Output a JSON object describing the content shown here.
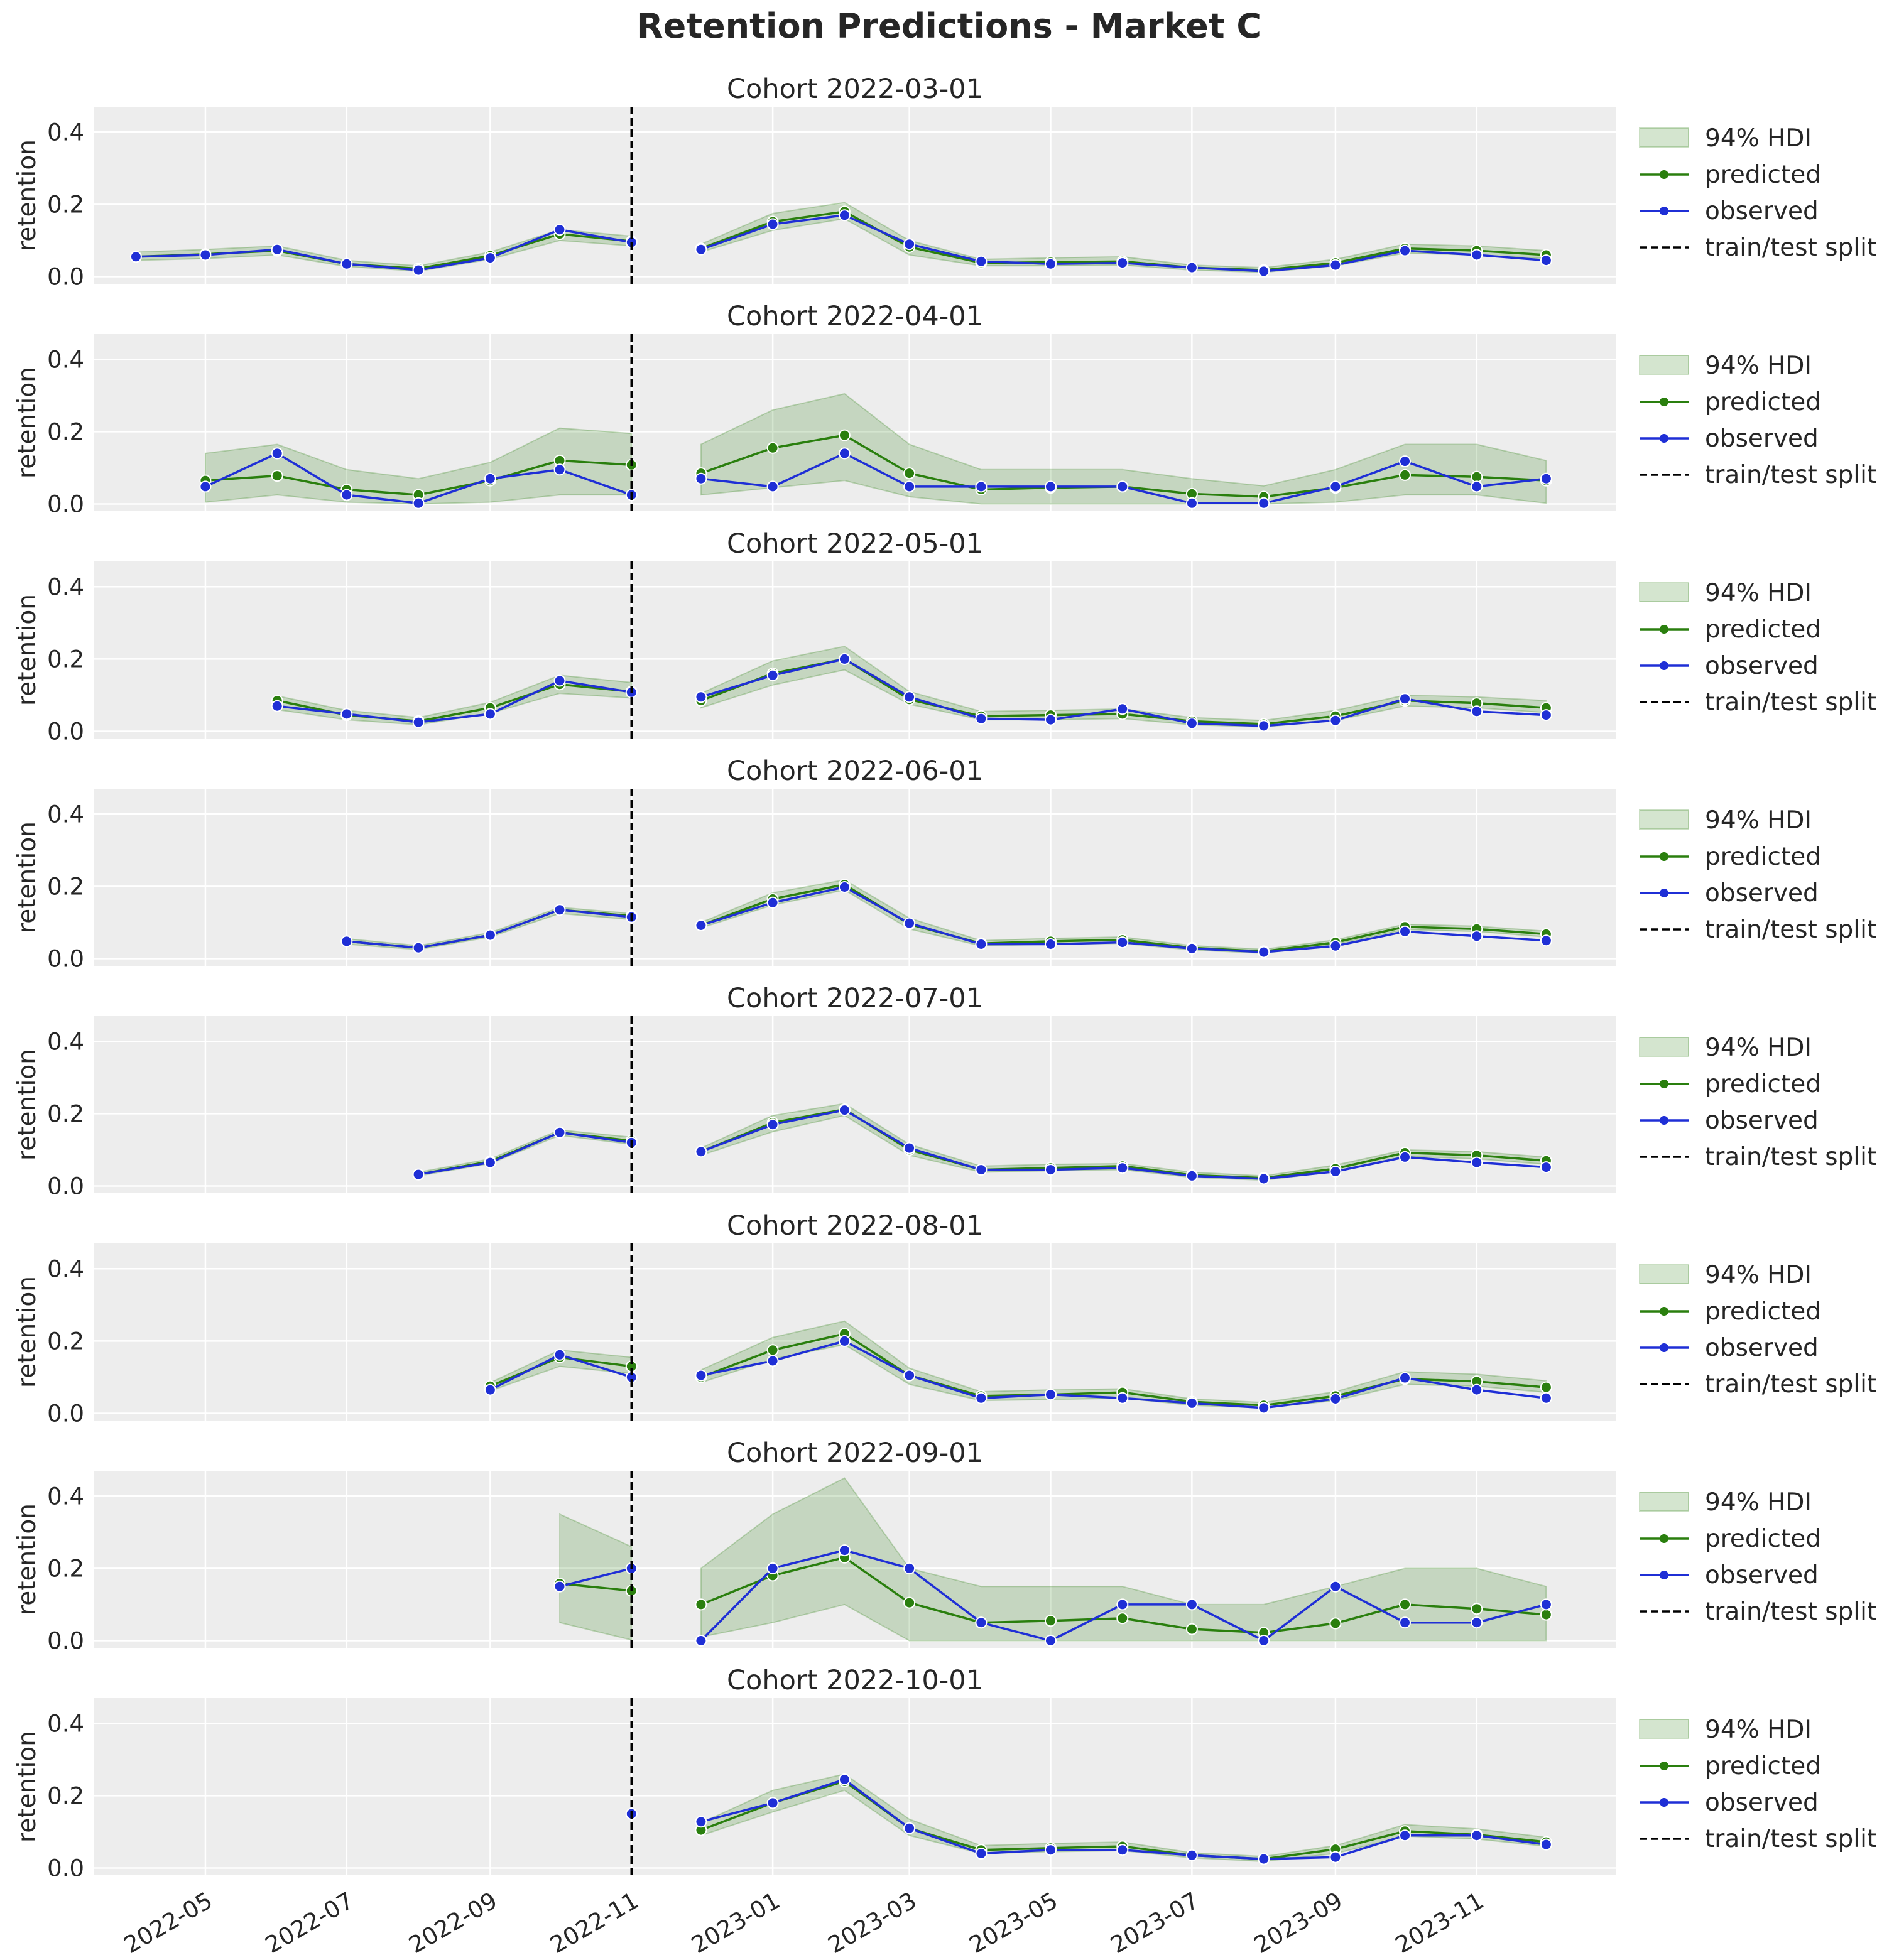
{
  "figure": {
    "title": "Retention Predictions - Market C"
  },
  "chart_data": {
    "type": "line",
    "ylabel": "retention",
    "ylim": [
      -0.02,
      0.47
    ],
    "xlim": [
      "2022-03-14",
      "2023-12-31"
    ],
    "yticks": [
      "0.0",
      "0.2",
      "0.4"
    ],
    "xticks": [
      "2022-05",
      "2022-07",
      "2022-09",
      "2022-11",
      "2023-01",
      "2023-03",
      "2023-05",
      "2023-07",
      "2023-09",
      "2023-11"
    ],
    "xtick_dates": [
      "2022-05-01",
      "2022-07-01",
      "2022-09-01",
      "2022-11-01",
      "2023-01-01",
      "2023-03-01",
      "2023-05-01",
      "2023-07-01",
      "2023-09-01",
      "2023-11-01"
    ],
    "grid": true,
    "legend_position": "outside-right",
    "legend": [
      "94% HDI",
      "predicted",
      "observed",
      "train/test split"
    ],
    "split_date": "2022-11-01",
    "colors": {
      "predicted": "#2a7f0e",
      "observed": "#1f2fd6",
      "hdi_fill": "#2a7f0e",
      "split": "#000000",
      "axes_bg": "#ededed"
    },
    "dates": [
      "2022-04-01",
      "2022-05-01",
      "2022-06-01",
      "2022-07-01",
      "2022-08-01",
      "2022-09-01",
      "2022-10-01",
      "2022-11-01",
      "2022-12-01",
      "2023-01-01",
      "2023-02-01",
      "2023-03-01",
      "2023-04-01",
      "2023-05-01",
      "2023-06-01",
      "2023-07-01",
      "2023-08-01",
      "2023-09-01",
      "2023-10-01",
      "2023-11-01",
      "2023-12-01"
    ],
    "panels": [
      {
        "title": "Cohort 2022-03-01",
        "predicted": [
          0.055,
          0.062,
          0.072,
          0.035,
          0.022,
          0.058,
          0.118,
          0.098,
          0.078,
          0.152,
          0.18,
          0.082,
          0.038,
          0.04,
          0.042,
          0.025,
          0.018,
          0.038,
          0.078,
          0.072,
          0.06
        ],
        "observed": [
          0.055,
          0.06,
          0.075,
          0.035,
          0.018,
          0.052,
          0.13,
          0.095,
          0.075,
          0.145,
          0.17,
          0.09,
          0.042,
          0.035,
          0.038,
          0.025,
          0.015,
          0.032,
          0.072,
          0.06,
          0.045
        ],
        "hdi_low": [
          0.045,
          0.05,
          0.06,
          0.028,
          0.015,
          0.048,
          0.1,
          0.085,
          0.068,
          0.128,
          0.16,
          0.06,
          0.03,
          0.03,
          0.032,
          0.018,
          0.012,
          0.03,
          0.065,
          0.06,
          0.05
        ],
        "hdi_high": [
          0.068,
          0.075,
          0.085,
          0.045,
          0.03,
          0.068,
          0.13,
          0.112,
          0.09,
          0.175,
          0.205,
          0.1,
          0.048,
          0.052,
          0.055,
          0.032,
          0.025,
          0.048,
          0.09,
          0.085,
          0.072
        ]
      },
      {
        "title": "Cohort 2022-04-01",
        "predicted": [
          null,
          0.065,
          0.078,
          0.04,
          0.025,
          0.065,
          0.12,
          0.108,
          0.085,
          0.155,
          0.19,
          0.085,
          0.04,
          0.045,
          0.048,
          0.028,
          0.02,
          0.045,
          0.08,
          0.075,
          0.065
        ],
        "observed": [
          null,
          0.048,
          0.14,
          0.025,
          0.002,
          0.07,
          0.095,
          0.025,
          0.07,
          0.048,
          0.14,
          0.048,
          0.048,
          0.048,
          0.048,
          0.002,
          0.002,
          0.048,
          0.118,
          0.048,
          0.07
        ],
        "hdi_low": [
          null,
          0.005,
          0.025,
          0.005,
          0.0,
          0.005,
          0.025,
          0.025,
          0.025,
          0.045,
          0.065,
          0.02,
          0.0,
          0.0,
          0.0,
          0.0,
          0.0,
          0.005,
          0.025,
          0.025,
          0.002
        ],
        "hdi_high": [
          null,
          0.14,
          0.165,
          0.095,
          0.07,
          0.115,
          0.21,
          0.195,
          0.165,
          0.26,
          0.305,
          0.165,
          0.095,
          0.095,
          0.095,
          0.07,
          0.05,
          0.095,
          0.165,
          0.165,
          0.12
        ]
      },
      {
        "title": "Cohort 2022-05-01",
        "predicted": [
          null,
          null,
          0.085,
          0.045,
          0.028,
          0.065,
          0.13,
          0.11,
          0.085,
          0.16,
          0.2,
          0.088,
          0.042,
          0.045,
          0.048,
          0.028,
          0.02,
          0.042,
          0.085,
          0.078,
          0.065
        ],
        "observed": [
          null,
          null,
          0.07,
          0.048,
          0.025,
          0.048,
          0.14,
          0.108,
          0.095,
          0.155,
          0.2,
          0.095,
          0.035,
          0.032,
          0.062,
          0.022,
          0.015,
          0.03,
          0.09,
          0.055,
          0.045
        ],
        "hdi_low": [
          null,
          null,
          0.06,
          0.032,
          0.018,
          0.05,
          0.105,
          0.092,
          0.065,
          0.128,
          0.17,
          0.075,
          0.032,
          0.032,
          0.035,
          0.018,
          0.012,
          0.03,
          0.07,
          0.065,
          0.052
        ],
        "hdi_high": [
          null,
          null,
          0.098,
          0.058,
          0.038,
          0.08,
          0.155,
          0.135,
          0.105,
          0.195,
          0.235,
          0.11,
          0.055,
          0.058,
          0.062,
          0.038,
          0.03,
          0.058,
          0.1,
          0.095,
          0.085
        ]
      },
      {
        "title": "Cohort 2022-06-01",
        "predicted": [
          null,
          null,
          null,
          0.048,
          0.03,
          0.065,
          0.135,
          0.118,
          0.092,
          0.165,
          0.205,
          0.095,
          0.042,
          0.048,
          0.052,
          0.03,
          0.02,
          0.045,
          0.088,
          0.082,
          0.068
        ],
        "observed": [
          null,
          null,
          null,
          0.048,
          0.03,
          0.065,
          0.135,
          0.115,
          0.092,
          0.155,
          0.198,
          0.098,
          0.04,
          0.04,
          0.045,
          0.028,
          0.018,
          0.035,
          0.075,
          0.062,
          0.05
        ],
        "hdi_low": [
          null,
          null,
          null,
          0.04,
          0.025,
          0.06,
          0.125,
          0.108,
          0.085,
          0.148,
          0.19,
          0.082,
          0.035,
          0.04,
          0.042,
          0.024,
          0.015,
          0.04,
          0.08,
          0.075,
          0.06
        ],
        "hdi_high": [
          null,
          null,
          null,
          0.055,
          0.036,
          0.072,
          0.142,
          0.125,
          0.1,
          0.182,
          0.218,
          0.112,
          0.05,
          0.056,
          0.06,
          0.036,
          0.026,
          0.052,
          0.095,
          0.09,
          0.076
        ]
      },
      {
        "title": "Cohort 2022-07-01",
        "predicted": [
          null,
          null,
          null,
          null,
          0.032,
          0.068,
          0.148,
          0.125,
          0.095,
          0.175,
          0.212,
          0.1,
          0.045,
          0.05,
          0.055,
          0.03,
          0.022,
          0.048,
          0.092,
          0.085,
          0.07
        ],
        "observed": [
          null,
          null,
          null,
          null,
          0.032,
          0.065,
          0.148,
          0.12,
          0.095,
          0.17,
          0.21,
          0.105,
          0.045,
          0.045,
          0.05,
          0.028,
          0.02,
          0.04,
          0.08,
          0.065,
          0.052
        ],
        "hdi_low": [
          null,
          null,
          null,
          null,
          0.028,
          0.062,
          0.14,
          0.115,
          0.085,
          0.15,
          0.195,
          0.085,
          0.038,
          0.042,
          0.045,
          0.024,
          0.016,
          0.04,
          0.082,
          0.075,
          0.06
        ],
        "hdi_high": [
          null,
          null,
          null,
          null,
          0.038,
          0.075,
          0.155,
          0.135,
          0.105,
          0.195,
          0.228,
          0.115,
          0.055,
          0.06,
          0.062,
          0.038,
          0.028,
          0.058,
          0.1,
          0.095,
          0.08
        ]
      },
      {
        "title": "Cohort 2022-08-01",
        "predicted": [
          null,
          null,
          null,
          null,
          null,
          0.075,
          0.155,
          0.13,
          0.1,
          0.175,
          0.22,
          0.105,
          0.048,
          0.052,
          0.058,
          0.032,
          0.022,
          0.048,
          0.095,
          0.088,
          0.072
        ],
        "observed": [
          null,
          null,
          null,
          null,
          null,
          0.065,
          0.162,
          0.1,
          0.105,
          0.145,
          0.2,
          0.105,
          0.042,
          0.052,
          0.042,
          0.028,
          0.015,
          0.04,
          0.098,
          0.065,
          0.042
        ],
        "hdi_low": [
          null,
          null,
          null,
          null,
          null,
          0.062,
          0.13,
          0.11,
          0.085,
          0.15,
          0.19,
          0.08,
          0.035,
          0.038,
          0.042,
          0.022,
          0.015,
          0.035,
          0.08,
          0.075,
          0.058
        ],
        "hdi_high": [
          null,
          null,
          null,
          null,
          null,
          0.085,
          0.175,
          0.155,
          0.12,
          0.21,
          0.255,
          0.125,
          0.06,
          0.065,
          0.068,
          0.04,
          0.03,
          0.06,
          0.115,
          0.108,
          0.09
        ]
      },
      {
        "title": "Cohort 2022-09-01",
        "predicted": [
          null,
          null,
          null,
          null,
          null,
          null,
          0.158,
          0.138,
          0.1,
          0.18,
          0.23,
          0.105,
          0.05,
          0.055,
          0.062,
          0.032,
          0.022,
          0.048,
          0.1,
          0.088,
          0.072
        ],
        "observed": [
          null,
          null,
          null,
          null,
          null,
          null,
          0.15,
          0.2,
          0.0,
          0.2,
          0.25,
          0.2,
          0.05,
          0.0,
          0.1,
          0.1,
          0.0,
          0.15,
          0.05,
          0.05,
          0.1
        ],
        "hdi_low": [
          null,
          null,
          null,
          null,
          null,
          null,
          0.05,
          0.002,
          0.01,
          0.05,
          0.1,
          0.0,
          0.0,
          0.0,
          0.0,
          0.0,
          0.0,
          0.0,
          0.0,
          0.0,
          0.0
        ],
        "hdi_high": [
          null,
          null,
          null,
          null,
          null,
          null,
          0.35,
          0.26,
          0.2,
          0.35,
          0.45,
          0.2,
          0.15,
          0.15,
          0.15,
          0.1,
          0.1,
          0.15,
          0.2,
          0.2,
          0.15
        ]
      },
      {
        "title": "Cohort 2022-10-01",
        "predicted": [
          null,
          null,
          null,
          null,
          null,
          null,
          null,
          0.15,
          0.105,
          0.18,
          0.24,
          0.11,
          0.05,
          0.055,
          0.06,
          0.035,
          0.025,
          0.052,
          0.102,
          0.092,
          0.072
        ],
        "observed": [
          null,
          null,
          null,
          null,
          null,
          null,
          null,
          0.15,
          0.128,
          0.18,
          0.245,
          0.11,
          0.04,
          0.05,
          0.05,
          0.035,
          0.025,
          0.03,
          0.09,
          0.09,
          0.065
        ],
        "hdi_low": [
          null,
          null,
          null,
          null,
          null,
          null,
          null,
          null,
          0.09,
          0.155,
          0.215,
          0.09,
          0.04,
          0.045,
          0.048,
          0.028,
          0.018,
          0.04,
          0.088,
          0.08,
          0.06
        ],
        "hdi_high": [
          null,
          null,
          null,
          null,
          null,
          null,
          null,
          null,
          0.125,
          0.215,
          0.26,
          0.135,
          0.062,
          0.068,
          0.072,
          0.042,
          0.032,
          0.062,
          0.12,
          0.108,
          0.085
        ]
      }
    ]
  }
}
